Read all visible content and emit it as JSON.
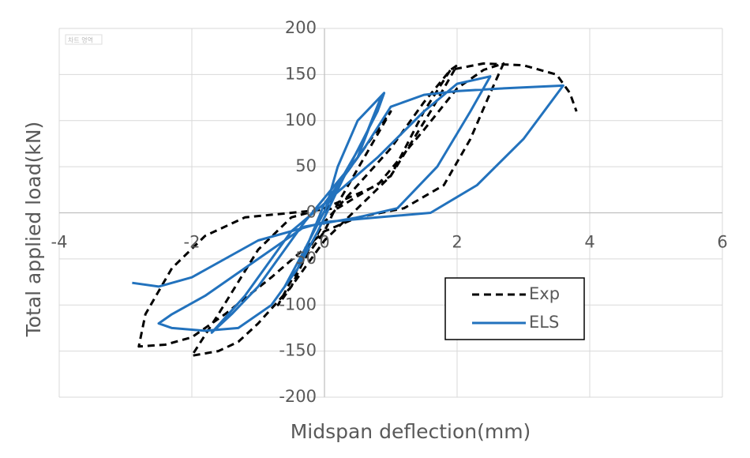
{
  "chart_data": {
    "type": "line",
    "annotation": "차트 영역",
    "x_label": "Midspan deflection(mm)",
    "y_label": "Total applied load(kN)",
    "xlim": [
      -4,
      6
    ],
    "xticks": [
      -4,
      -2,
      0,
      2,
      4,
      6
    ],
    "ylim": [
      -200,
      200
    ],
    "yticks": [
      -200,
      -150,
      -100,
      -50,
      0,
      50,
      100,
      150,
      200
    ],
    "grid": true,
    "legend": "lower right",
    "series": [
      {
        "name": "Exp",
        "color": "#000000",
        "line_style": "dashed",
        "x": [
          0,
          0.3,
          0.6,
          0.9,
          1.0,
          0.6,
          0.2,
          0,
          -0.3,
          -0.5,
          -0.7,
          -0.4,
          0,
          0.5,
          1.0,
          1.5,
          1.9,
          2.0,
          1.6,
          1.0,
          0.5,
          0,
          -0.5,
          -1.0,
          -1.3,
          -1.6,
          -2.0,
          -1.6,
          -1.0,
          -0.5,
          0,
          0.8,
          1.5,
          2.0,
          2.4,
          2.7,
          2.5,
          2.2,
          1.8,
          1.2,
          0.5,
          0,
          -0.8,
          -1.5,
          -2.0,
          -2.4,
          -2.8,
          -2.7,
          -2.3,
          -1.8,
          -1.2,
          -0.5,
          0.2,
          1.0,
          1.5,
          1.9,
          2.4,
          3.0,
          3.5,
          3.7,
          3.8
        ],
        "values": [
          0,
          40,
          70,
          100,
          110,
          60,
          10,
          -20,
          -50,
          -80,
          -100,
          -60,
          -10,
          30,
          70,
          120,
          155,
          160,
          110,
          40,
          5,
          -30,
          -80,
          -120,
          -140,
          -150,
          -155,
          -110,
          -40,
          -5,
          5,
          30,
          90,
          135,
          155,
          162,
          130,
          80,
          30,
          5,
          -5,
          -20,
          -70,
          -110,
          -135,
          -143,
          -145,
          -110,
          -60,
          -25,
          -5,
          0,
          5,
          40,
          110,
          155,
          162,
          160,
          150,
          130,
          110
        ]
      },
      {
        "name": "ELS",
        "color": "#2272bd",
        "line_style": "solid",
        "x": [
          0,
          0.2,
          0.5,
          0.9,
          0.8,
          0.3,
          -0.1,
          -0.4,
          -0.6,
          -0.3,
          0.2,
          0.6,
          0.85,
          0.5,
          -0.3,
          -1.0,
          -1.4,
          -1.7,
          -1.2,
          -0.5,
          0,
          0.8,
          1.5,
          2.0,
          2.5,
          2.2,
          1.7,
          1.1,
          0.5,
          -0.3,
          -1.0,
          -1.8,
          -2.3,
          -2.5,
          -2.3,
          -1.8,
          -1.3,
          -0.8,
          -0.4,
          0,
          0.6,
          1.0,
          1.5,
          2.0,
          2.7,
          3.6,
          3.0,
          2.3,
          1.6,
          0.8,
          0,
          -1.0,
          -2.0,
          -2.5,
          -2.9
        ],
        "values": [
          0,
          50,
          100,
          130,
          110,
          40,
          -20,
          -60,
          -80,
          -40,
          30,
          80,
          125,
          60,
          -10,
          -80,
          -110,
          -130,
          -90,
          -20,
          10,
          60,
          110,
          140,
          148,
          110,
          50,
          5,
          -5,
          -15,
          -50,
          -90,
          -110,
          -120,
          -125,
          -128,
          -125,
          -100,
          -60,
          10,
          70,
          115,
          128,
          132,
          135,
          138,
          80,
          30,
          0,
          -5,
          -10,
          -30,
          -70,
          -80,
          -76
        ]
      }
    ]
  }
}
